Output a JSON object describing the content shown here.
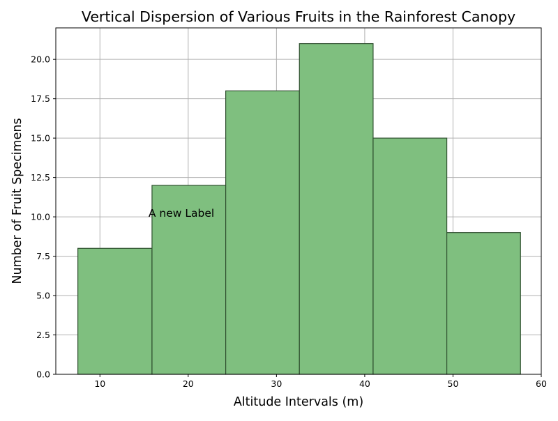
{
  "chart_data": {
    "type": "bar",
    "title": "Vertical Dispersion of Various Fruits in the Rainforest Canopy",
    "xlabel": "Altitude Intervals (m)",
    "ylabel": "Number of Fruit Specimens",
    "bins": [
      {
        "start": 7.5,
        "end": 15.9,
        "value": 8
      },
      {
        "start": 15.9,
        "end": 24.25,
        "value": 12
      },
      {
        "start": 24.25,
        "end": 32.6,
        "value": 18
      },
      {
        "start": 32.6,
        "end": 40.95,
        "value": 21
      },
      {
        "start": 40.95,
        "end": 49.3,
        "value": 15
      },
      {
        "start": 49.3,
        "end": 57.65,
        "value": 9
      }
    ],
    "xlim": [
      5,
      60
    ],
    "ylim": [
      0,
      22
    ],
    "x_ticks": [
      10,
      20,
      30,
      40,
      50,
      60
    ],
    "y_ticks": [
      "0.0",
      "2.5",
      "5.0",
      "7.5",
      "10.0",
      "12.5",
      "15.0",
      "17.5",
      "20.0"
    ],
    "grid": true,
    "bar_color": "#7fbf7f",
    "bar_edge_color": "#2f4f2f",
    "annotation": {
      "text": "A new Label",
      "x": 15.5,
      "y": 10
    }
  }
}
